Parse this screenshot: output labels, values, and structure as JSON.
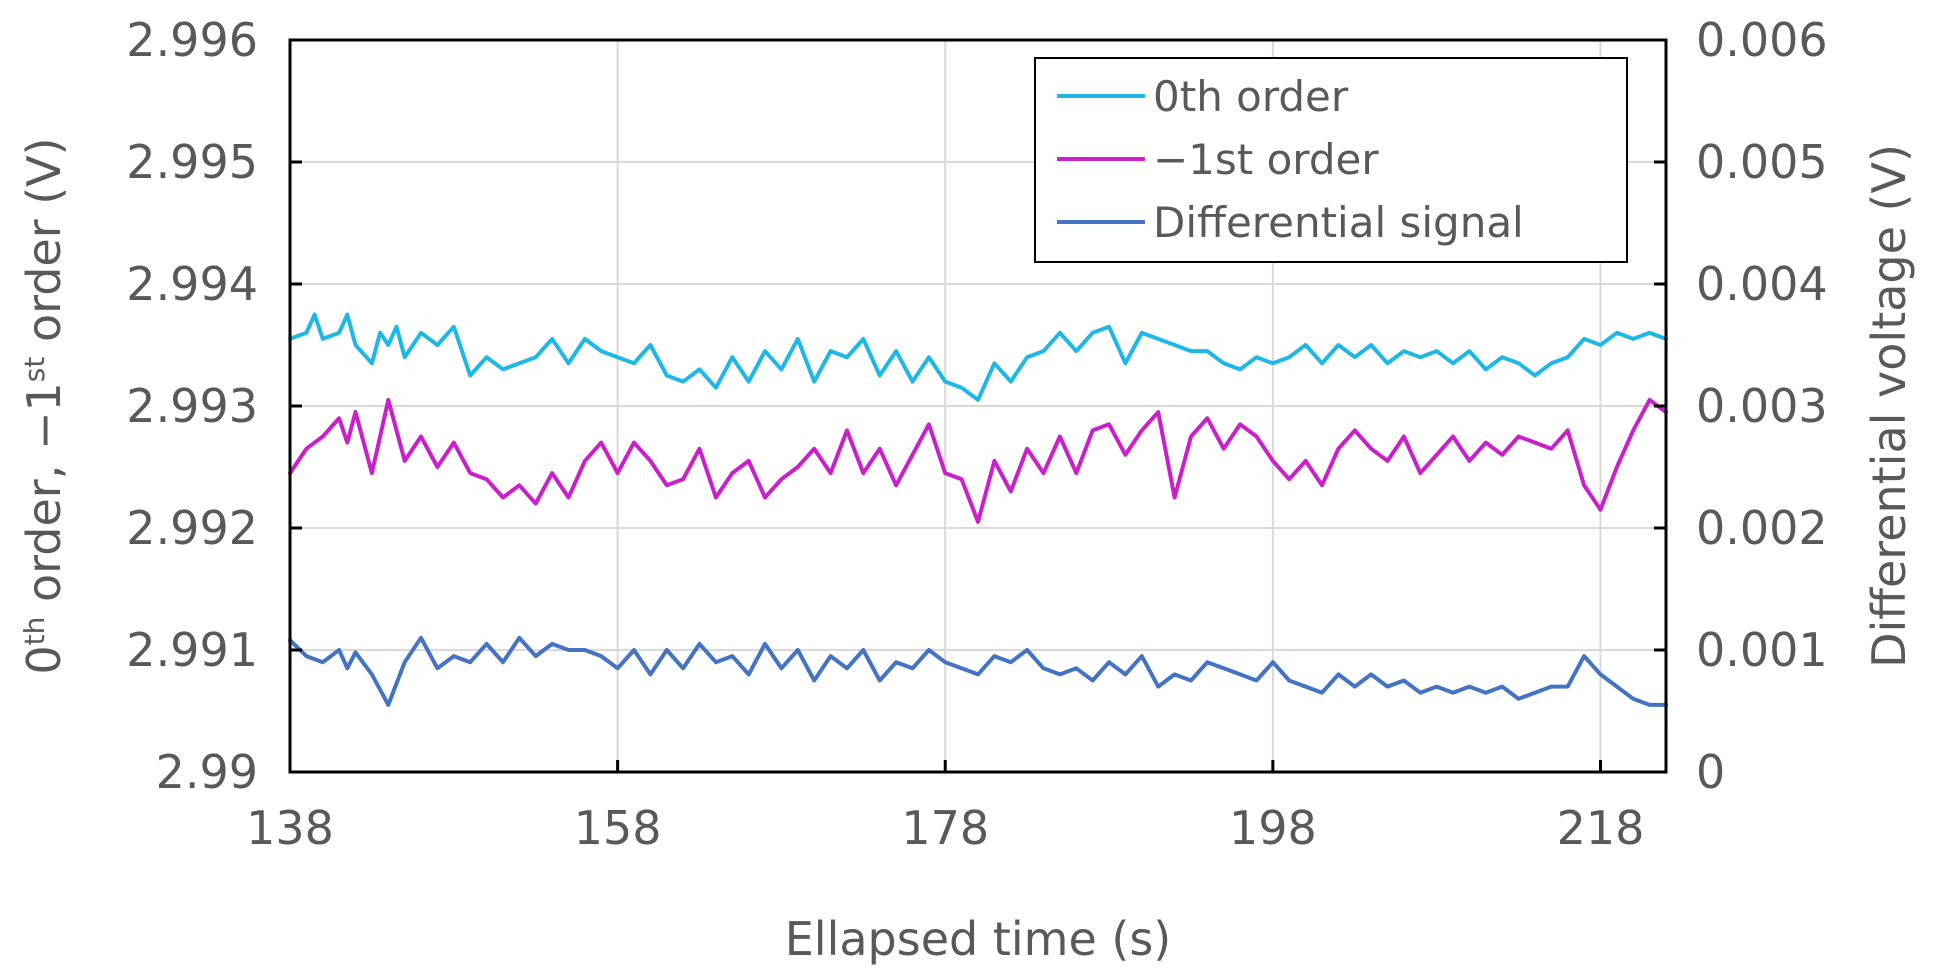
{
  "chart_data": {
    "type": "line",
    "xlabel": "Ellapsed time (s)",
    "ylabel_left": {
      "parts": [
        {
          "text": "0",
          "sup": false
        },
        {
          "text": "th",
          "sup": true
        },
        {
          "text": " order, −1",
          "sup": false
        },
        {
          "text": "st",
          "sup": true
        },
        {
          "text": " order (V)",
          "sup": false
        }
      ]
    },
    "ylabel_right": "Differential voltage (V)",
    "xlim": [
      138,
      222
    ],
    "ylim_left": [
      2.99,
      2.996
    ],
    "ylim_right": [
      0,
      0.006
    ],
    "x_ticks": [
      {
        "value": 138,
        "label": "138"
      },
      {
        "value": 158,
        "label": "158"
      },
      {
        "value": 178,
        "label": "178"
      },
      {
        "value": 198,
        "label": "198"
      },
      {
        "value": 218,
        "label": "218"
      }
    ],
    "y_left_ticks": [
      {
        "value": 2.99,
        "label": "2.99"
      },
      {
        "value": 2.991,
        "label": "2.991"
      },
      {
        "value": 2.992,
        "label": "2.992"
      },
      {
        "value": 2.993,
        "label": "2.993"
      },
      {
        "value": 2.994,
        "label": "2.994"
      },
      {
        "value": 2.995,
        "label": "2.995"
      },
      {
        "value": 2.996,
        "label": "2.996"
      }
    ],
    "y_right_ticks": [
      {
        "value": 0,
        "label": "0"
      },
      {
        "value": 0.001,
        "label": "0.001"
      },
      {
        "value": 0.002,
        "label": "0.002"
      },
      {
        "value": 0.003,
        "label": "0.003"
      },
      {
        "value": 0.004,
        "label": "0.004"
      },
      {
        "value": 0.005,
        "label": "0.005"
      },
      {
        "value": 0.006,
        "label": "0.006"
      }
    ],
    "grid": true,
    "legend_position": "top-right",
    "series": [
      {
        "name": "0th order",
        "axis": "left",
        "color": "#1fb8e6",
        "points": [
          [
            138,
            2.99355
          ],
          [
            139,
            2.9936
          ],
          [
            139.5,
            2.99375
          ],
          [
            140,
            2.99355
          ],
          [
            141,
            2.9936
          ],
          [
            141.5,
            2.99375
          ],
          [
            142,
            2.9935
          ],
          [
            143,
            2.99335
          ],
          [
            143.5,
            2.9936
          ],
          [
            144,
            2.9935
          ],
          [
            144.5,
            2.99365
          ],
          [
            145,
            2.9934
          ],
          [
            146,
            2.9936
          ],
          [
            147,
            2.9935
          ],
          [
            148,
            2.99365
          ],
          [
            149,
            2.99325
          ],
          [
            150,
            2.9934
          ],
          [
            151,
            2.9933
          ],
          [
            152,
            2.99335
          ],
          [
            153,
            2.9934
          ],
          [
            154,
            2.99355
          ],
          [
            155,
            2.99335
          ],
          [
            156,
            2.99355
          ],
          [
            157,
            2.99345
          ],
          [
            158,
            2.9934
          ],
          [
            159,
            2.99335
          ],
          [
            160,
            2.9935
          ],
          [
            161,
            2.99325
          ],
          [
            162,
            2.9932
          ],
          [
            163,
            2.9933
          ],
          [
            164,
            2.99315
          ],
          [
            165,
            2.9934
          ],
          [
            166,
            2.9932
          ],
          [
            167,
            2.99345
          ],
          [
            168,
            2.9933
          ],
          [
            169,
            2.99355
          ],
          [
            170,
            2.9932
          ],
          [
            171,
            2.99345
          ],
          [
            172,
            2.9934
          ],
          [
            173,
            2.99355
          ],
          [
            174,
            2.99325
          ],
          [
            175,
            2.99345
          ],
          [
            176,
            2.9932
          ],
          [
            177,
            2.9934
          ],
          [
            178,
            2.9932
          ],
          [
            179,
            2.99315
          ],
          [
            180,
            2.99305
          ],
          [
            181,
            2.99335
          ],
          [
            182,
            2.9932
          ],
          [
            183,
            2.9934
          ],
          [
            184,
            2.99345
          ],
          [
            185,
            2.9936
          ],
          [
            186,
            2.99345
          ],
          [
            187,
            2.9936
          ],
          [
            188,
            2.99365
          ],
          [
            189,
            2.99335
          ],
          [
            190,
            2.9936
          ],
          [
            191,
            2.99355
          ],
          [
            192,
            2.9935
          ],
          [
            193,
            2.99345
          ],
          [
            194,
            2.99345
          ],
          [
            195,
            2.99335
          ],
          [
            196,
            2.9933
          ],
          [
            197,
            2.9934
          ],
          [
            198,
            2.99335
          ],
          [
            199,
            2.9934
          ],
          [
            200,
            2.9935
          ],
          [
            201,
            2.99335
          ],
          [
            202,
            2.9935
          ],
          [
            203,
            2.9934
          ],
          [
            204,
            2.9935
          ],
          [
            205,
            2.99335
          ],
          [
            206,
            2.99345
          ],
          [
            207,
            2.9934
          ],
          [
            208,
            2.99345
          ],
          [
            209,
            2.99335
          ],
          [
            210,
            2.99345
          ],
          [
            211,
            2.9933
          ],
          [
            212,
            2.9934
          ],
          [
            213,
            2.99335
          ],
          [
            214,
            2.99325
          ],
          [
            215,
            2.99335
          ],
          [
            216,
            2.9934
          ],
          [
            217,
            2.99355
          ],
          [
            218,
            2.9935
          ],
          [
            219,
            2.9936
          ],
          [
            220,
            2.99355
          ],
          [
            221,
            2.9936
          ],
          [
            222,
            2.99355
          ]
        ]
      },
      {
        "name": "−1st order",
        "axis": "left",
        "color": "#cc1fcc",
        "points": [
          [
            138,
            2.99245
          ],
          [
            139,
            2.99265
          ],
          [
            140,
            2.99275
          ],
          [
            141,
            2.9929
          ],
          [
            141.5,
            2.9927
          ],
          [
            142,
            2.99295
          ],
          [
            143,
            2.99245
          ],
          [
            144,
            2.99305
          ],
          [
            145,
            2.99255
          ],
          [
            146,
            2.99275
          ],
          [
            147,
            2.9925
          ],
          [
            148,
            2.9927
          ],
          [
            149,
            2.99245
          ],
          [
            150,
            2.9924
          ],
          [
            151,
            2.99225
          ],
          [
            152,
            2.99235
          ],
          [
            153,
            2.9922
          ],
          [
            154,
            2.99245
          ],
          [
            155,
            2.99225
          ],
          [
            156,
            2.99255
          ],
          [
            157,
            2.9927
          ],
          [
            158,
            2.99245
          ],
          [
            159,
            2.9927
          ],
          [
            160,
            2.99255
          ],
          [
            161,
            2.99235
          ],
          [
            162,
            2.9924
          ],
          [
            163,
            2.99265
          ],
          [
            164,
            2.99225
          ],
          [
            165,
            2.99245
          ],
          [
            166,
            2.99255
          ],
          [
            167,
            2.99225
          ],
          [
            168,
            2.9924
          ],
          [
            169,
            2.9925
          ],
          [
            170,
            2.99265
          ],
          [
            171,
            2.99245
          ],
          [
            172,
            2.9928
          ],
          [
            173,
            2.99245
          ],
          [
            174,
            2.99265
          ],
          [
            175,
            2.99235
          ],
          [
            176,
            2.9926
          ],
          [
            177,
            2.99285
          ],
          [
            178,
            2.99245
          ],
          [
            179,
            2.9924
          ],
          [
            180,
            2.99205
          ],
          [
            181,
            2.99255
          ],
          [
            182,
            2.9923
          ],
          [
            183,
            2.99265
          ],
          [
            184,
            2.99245
          ],
          [
            185,
            2.99275
          ],
          [
            186,
            2.99245
          ],
          [
            187,
            2.9928
          ],
          [
            188,
            2.99285
          ],
          [
            189,
            2.9926
          ],
          [
            190,
            2.9928
          ],
          [
            191,
            2.99295
          ],
          [
            192,
            2.99225
          ],
          [
            193,
            2.99275
          ],
          [
            194,
            2.9929
          ],
          [
            195,
            2.99265
          ],
          [
            196,
            2.99285
          ],
          [
            197,
            2.99275
          ],
          [
            198,
            2.99255
          ],
          [
            199,
            2.9924
          ],
          [
            200,
            2.99255
          ],
          [
            201,
            2.99235
          ],
          [
            202,
            2.99265
          ],
          [
            203,
            2.9928
          ],
          [
            204,
            2.99265
          ],
          [
            205,
            2.99255
          ],
          [
            206,
            2.99275
          ],
          [
            207,
            2.99245
          ],
          [
            208,
            2.9926
          ],
          [
            209,
            2.99275
          ],
          [
            210,
            2.99255
          ],
          [
            211,
            2.9927
          ],
          [
            212,
            2.9926
          ],
          [
            213,
            2.99275
          ],
          [
            214,
            2.9927
          ],
          [
            215,
            2.99265
          ],
          [
            216,
            2.9928
          ],
          [
            217,
            2.99235
          ],
          [
            218,
            2.99215
          ],
          [
            219,
            2.9925
          ],
          [
            220,
            2.9928
          ],
          [
            221,
            2.99305
          ],
          [
            222,
            2.99295
          ]
        ]
      },
      {
        "name": "Differential signal",
        "axis": "right",
        "color": "#4472c4",
        "points": [
          [
            138,
            0.00108
          ],
          [
            139,
            0.00095
          ],
          [
            140,
            0.0009
          ],
          [
            141,
            0.001
          ],
          [
            141.5,
            0.00085
          ],
          [
            142,
            0.00098
          ],
          [
            143,
            0.0008
          ],
          [
            144,
            0.00055
          ],
          [
            145,
            0.0009
          ],
          [
            146,
            0.0011
          ],
          [
            147,
            0.00085
          ],
          [
            148,
            0.00095
          ],
          [
            149,
            0.0009
          ],
          [
            150,
            0.00105
          ],
          [
            151,
            0.0009
          ],
          [
            152,
            0.0011
          ],
          [
            153,
            0.00095
          ],
          [
            154,
            0.00105
          ],
          [
            155,
            0.001
          ],
          [
            156,
            0.001
          ],
          [
            157,
            0.00095
          ],
          [
            158,
            0.00085
          ],
          [
            159,
            0.001
          ],
          [
            160,
            0.0008
          ],
          [
            161,
            0.001
          ],
          [
            162,
            0.00085
          ],
          [
            163,
            0.00105
          ],
          [
            164,
            0.0009
          ],
          [
            165,
            0.00095
          ],
          [
            166,
            0.0008
          ],
          [
            167,
            0.00105
          ],
          [
            168,
            0.00085
          ],
          [
            169,
            0.001
          ],
          [
            170,
            0.00075
          ],
          [
            171,
            0.00095
          ],
          [
            172,
            0.00085
          ],
          [
            173,
            0.001
          ],
          [
            174,
            0.00075
          ],
          [
            175,
            0.0009
          ],
          [
            176,
            0.00085
          ],
          [
            177,
            0.001
          ],
          [
            178,
            0.0009
          ],
          [
            179,
            0.00085
          ],
          [
            180,
            0.0008
          ],
          [
            181,
            0.00095
          ],
          [
            182,
            0.0009
          ],
          [
            183,
            0.001
          ],
          [
            184,
            0.00085
          ],
          [
            185,
            0.0008
          ],
          [
            186,
            0.00085
          ],
          [
            187,
            0.00075
          ],
          [
            188,
            0.0009
          ],
          [
            189,
            0.0008
          ],
          [
            190,
            0.00095
          ],
          [
            191,
            0.0007
          ],
          [
            192,
            0.0008
          ],
          [
            193,
            0.00075
          ],
          [
            194,
            0.0009
          ],
          [
            195,
            0.00085
          ],
          [
            196,
            0.0008
          ],
          [
            197,
            0.00075
          ],
          [
            198,
            0.0009
          ],
          [
            199,
            0.00075
          ],
          [
            200,
            0.0007
          ],
          [
            201,
            0.00065
          ],
          [
            202,
            0.0008
          ],
          [
            203,
            0.0007
          ],
          [
            204,
            0.0008
          ],
          [
            205,
            0.0007
          ],
          [
            206,
            0.00075
          ],
          [
            207,
            0.00065
          ],
          [
            208,
            0.0007
          ],
          [
            209,
            0.00065
          ],
          [
            210,
            0.0007
          ],
          [
            211,
            0.00065
          ],
          [
            212,
            0.0007
          ],
          [
            213,
            0.0006
          ],
          [
            214,
            0.00065
          ],
          [
            215,
            0.0007
          ],
          [
            216,
            0.0007
          ],
          [
            217,
            0.00095
          ],
          [
            218,
            0.0008
          ],
          [
            219,
            0.0007
          ],
          [
            220,
            0.0006
          ],
          [
            221,
            0.00055
          ],
          [
            222,
            0.00055
          ]
        ]
      }
    ]
  }
}
